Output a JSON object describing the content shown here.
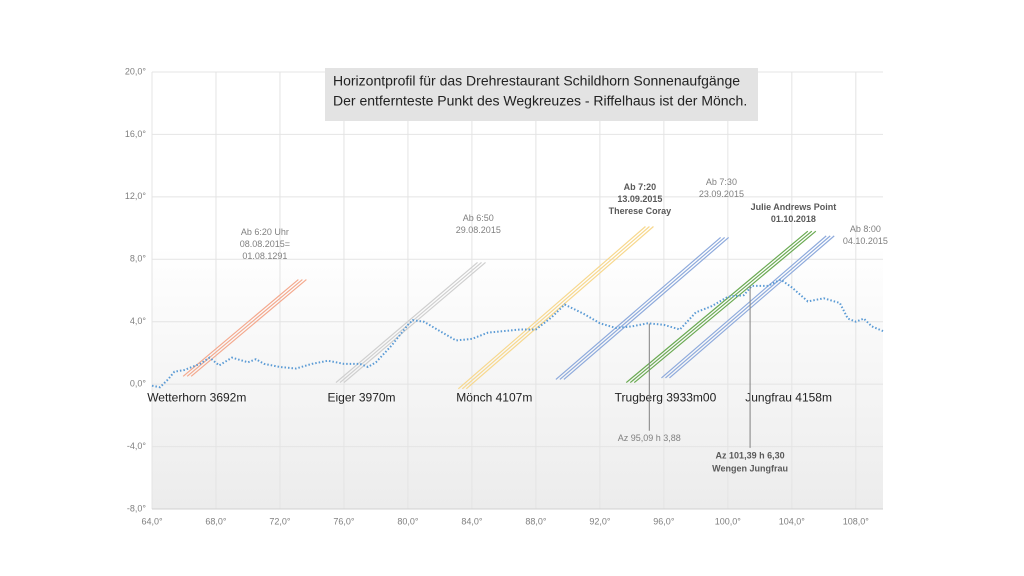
{
  "chart_data": {
    "type": "line",
    "title_lines": [
      "Horizontprofil für das Drehrestaurant Schildhorn Sonnenaufgänge",
      "Der entfernteste Punkt des Wegkreuzes - Riffelhaus ist der Mönch."
    ],
    "xlim": [
      64,
      109.7
    ],
    "ylim": [
      -8,
      20
    ],
    "xticks": [
      {
        "value": 64,
        "label": "64,0°"
      },
      {
        "value": 68,
        "label": "68,0°"
      },
      {
        "value": 72,
        "label": "72,0°"
      },
      {
        "value": 76,
        "label": "76,0°"
      },
      {
        "value": 80,
        "label": "80,0°"
      },
      {
        "value": 84,
        "label": "84,0°"
      },
      {
        "value": 88,
        "label": "88,0°"
      },
      {
        "value": 92,
        "label": "92,0°"
      },
      {
        "value": 96,
        "label": "96,0°"
      },
      {
        "value": 100,
        "label": "100,0°"
      },
      {
        "value": 104,
        "label": "104,0°"
      },
      {
        "value": 108,
        "label": "108,0°"
      }
    ],
    "yticks": [
      {
        "value": -8,
        "label": "-8,0°"
      },
      {
        "value": -4,
        "label": "-4,0°"
      },
      {
        "value": 0,
        "label": "0,0°"
      },
      {
        "value": 4,
        "label": "4,0°"
      },
      {
        "value": 8,
        "label": "8,0°"
      },
      {
        "value": 12,
        "label": "12,0°"
      },
      {
        "value": 16,
        "label": "16,0°"
      },
      {
        "value": 20,
        "label": "20,0°"
      }
    ],
    "grid": true,
    "horizon": {
      "color": "#5b9bd5",
      "x": [
        64,
        64.5,
        65,
        65.4,
        66,
        67,
        67.6,
        68.2,
        69,
        70,
        70.5,
        71,
        72,
        73,
        74,
        75,
        76,
        77,
        77.5,
        78,
        79,
        80,
        80.3,
        81,
        82,
        83,
        84,
        85,
        86,
        87,
        88,
        89,
        89.8,
        91,
        92,
        93,
        94,
        95,
        96,
        97,
        98,
        99,
        100,
        101,
        101.5,
        102.5,
        103.3,
        104,
        105,
        106,
        107,
        107.5,
        108,
        108.5,
        109,
        109.7
      ],
      "values": [
        -0.1,
        -0.2,
        0.3,
        0.8,
        0.9,
        1.3,
        1.7,
        1.2,
        1.7,
        1.4,
        1.6,
        1.3,
        1.1,
        1.0,
        1.3,
        1.5,
        1.3,
        1.3,
        1.1,
        1.4,
        2.5,
        3.8,
        4.1,
        4.0,
        3.4,
        2.8,
        2.9,
        3.3,
        3.4,
        3.5,
        3.5,
        4.3,
        5.1,
        4.5,
        3.9,
        3.6,
        3.7,
        3.9,
        3.8,
        3.5,
        4.6,
        5.0,
        5.6,
        5.7,
        6.3,
        6.3,
        6.7,
        6.2,
        5.3,
        5.5,
        5.2,
        4.2,
        4.0,
        4.2,
        3.7,
        3.4
      ]
    },
    "sun_paths": [
      {
        "color": "#f4a98e",
        "x": [
          66.2,
          73.4
        ],
        "values": [
          0.5,
          6.7
        ]
      },
      {
        "color": "#cfcfcf",
        "x": [
          75.75,
          84.6
        ],
        "values": [
          0.1,
          7.8
        ]
      },
      {
        "color": "#f7d88e",
        "x": [
          83.4,
          95.1
        ],
        "values": [
          -0.3,
          10.1
        ]
      },
      {
        "color": "#8eaadc",
        "x": [
          89.5,
          99.8
        ],
        "values": [
          0.3,
          9.4
        ]
      },
      {
        "color": "#6aaa52",
        "x": [
          93.9,
          105.25
        ],
        "values": [
          0.1,
          9.8
        ]
      },
      {
        "color": "#8eaadc",
        "x": [
          96.1,
          106.4
        ],
        "values": [
          0.4,
          9.5
        ]
      }
    ],
    "annotations": [
      {
        "lines": [
          "Ab 6:20 Uhr",
          "08.08.2015=",
          "01.08.1291"
        ],
        "x": 71.06,
        "y": 9.7,
        "bold": false
      },
      {
        "lines": [
          "Ab 6:50",
          "29.08.2015"
        ],
        "x": 84.4,
        "y": 10.6,
        "bold": false
      },
      {
        "lines": [
          "Ab  7:20",
          "13.09.2015",
          "Therese Coray"
        ],
        "x": 94.5,
        "y": 12.6,
        "bold": true
      },
      {
        "lines": [
          "Ab 7:30",
          "23.09.2015"
        ],
        "x": 99.6,
        "y": 12.9,
        "bold": false
      },
      {
        "lines": [
          "Julie Andrews Point",
          "01.10.2018"
        ],
        "x": 104.1,
        "y": 11.3,
        "bold": true
      },
      {
        "lines": [
          "Ab 8:00",
          "04.10.2015"
        ],
        "x": 108.6,
        "y": 9.9,
        "bold": false
      }
    ],
    "mountains": [
      {
        "label": "Wetterhorn 3692m",
        "x": 66.8,
        "y": -0.9
      },
      {
        "label": "Eiger 3970m",
        "x": 77.1,
        "y": -0.9
      },
      {
        "label": "Mönch  4107m",
        "x": 85.4,
        "y": -0.9
      },
      {
        "label": "Trugberg 3933m00",
        "x": 96.1,
        "y": -0.9
      },
      {
        "label": "Jungfrau 4158m",
        "x": 103.8,
        "y": -0.9
      }
    ],
    "callouts": [
      {
        "lines": [
          "Az 95,09 h 3,88"
        ],
        "x": 95.09,
        "y": 3.88,
        "label_y": -3.5,
        "bold": false
      },
      {
        "lines": [
          "Az 101,39 h 6,30",
          "Wengen Jungfrau"
        ],
        "x": 101.39,
        "y": 6.3,
        "label_y": -4.6,
        "bold": true
      }
    ]
  }
}
